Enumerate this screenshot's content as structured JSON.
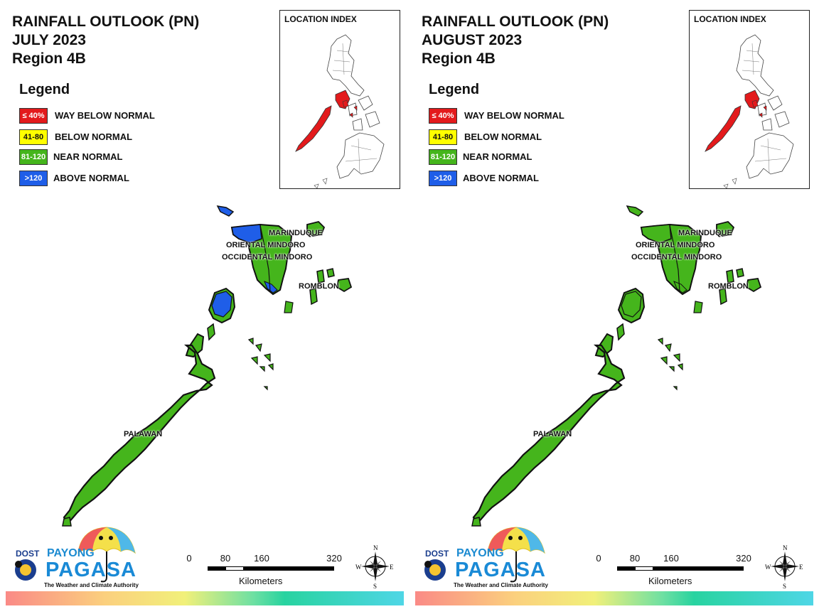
{
  "colors": {
    "way_below": "#e31a1c",
    "below": "#ffff00",
    "near": "#45b51c",
    "above": "#1f5ee8"
  },
  "panels": [
    {
      "title_line1": "RAINFALL OUTLOOK (PN)",
      "title_line2": "JULY 2023",
      "title_line3": "Region 4B",
      "northwest_mindoro_category": "above",
      "north_palawan_category": "above"
    },
    {
      "title_line1": "RAINFALL OUTLOOK (PN)",
      "title_line2": "AUGUST 2023",
      "title_line3": "Region 4B",
      "northwest_mindoro_category": "near",
      "north_palawan_category": "near"
    }
  ],
  "legend": {
    "title": "Legend",
    "items": [
      {
        "swatch": "≤ 40%",
        "label": "WAY BELOW NORMAL"
      },
      {
        "swatch": "41-80",
        "label": "BELOW NORMAL"
      },
      {
        "swatch": "81-120",
        "label": "NEAR NORMAL"
      },
      {
        "swatch": ">120",
        "label": "ABOVE NORMAL"
      }
    ]
  },
  "inset": {
    "title": "LOCATION INDEX"
  },
  "map_labels": {
    "marinduque": "MARINDUQUE",
    "oriental_mindoro": "ORIENTAL MINDORO",
    "occidental_mindoro": "OCCIDENTAL MINDORO",
    "romblon": "ROMBLON",
    "palawan": "PALAWAN"
  },
  "logo": {
    "dost": "DOST",
    "payong": "PAYONG",
    "pagasa": "PAGASA",
    "tagline": "The Weather and Climate Authority"
  },
  "scale": {
    "ticks": [
      "0",
      "80",
      "160",
      "320"
    ],
    "unit": "Kilometers"
  },
  "compass": {
    "n": "N",
    "e": "E",
    "s": "S",
    "w": "W"
  }
}
